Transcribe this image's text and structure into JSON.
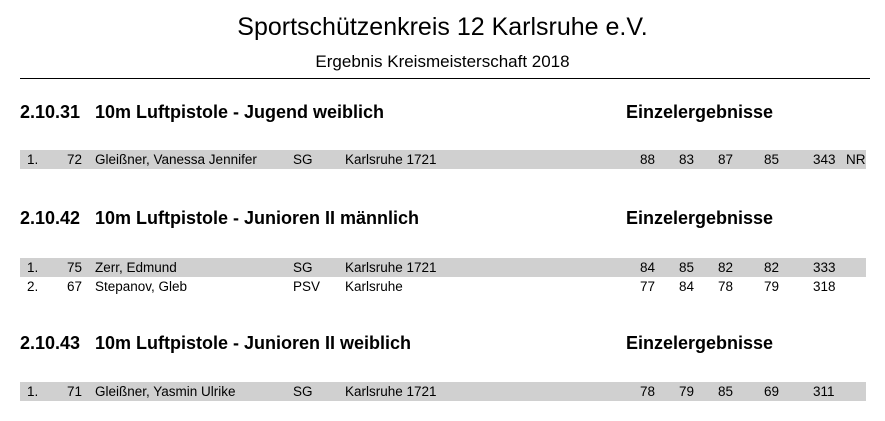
{
  "header": {
    "title": "Sportschützenkreis 12 Karlsruhe e.V.",
    "subtitle": "Ergebnis Kreismeisterschaft 2018"
  },
  "sections": [
    {
      "number": "2.10.31",
      "name": "10m Luftpistole - Jugend weiblich",
      "type_label": "Einzelergebnisse",
      "rows": [
        {
          "rank": "1.",
          "start_no": "72",
          "name": "Gleißner,  Vanessa Jennifer",
          "club": "SG",
          "association": "Karlsruhe 1721",
          "s1": "88",
          "s2": "83",
          "s3": "87",
          "s4": "85",
          "total": "343",
          "note": "NR"
        }
      ]
    },
    {
      "number": "2.10.42",
      "name": "10m Luftpistole - Junioren II männlich",
      "type_label": "Einzelergebnisse",
      "rows": [
        {
          "rank": "1.",
          "start_no": "75",
          "name": "Zerr,  Edmund",
          "club": "SG",
          "association": "Karlsruhe 1721",
          "s1": "84",
          "s2": "85",
          "s3": "82",
          "s4": "82",
          "total": "333",
          "note": ""
        },
        {
          "rank": "2.",
          "start_no": "67",
          "name": "Stepanov,  Gleb",
          "club": "PSV",
          "association": "Karlsruhe",
          "s1": "77",
          "s2": "84",
          "s3": "78",
          "s4": "79",
          "total": "318",
          "note": ""
        }
      ]
    },
    {
      "number": "2.10.43",
      "name": "10m Luftpistole - Junioren II weiblich",
      "type_label": "Einzelergebnisse",
      "rows": [
        {
          "rank": "1.",
          "start_no": "71",
          "name": "Gleißner,  Yasmin Ulrike",
          "club": "SG",
          "association": "Karlsruhe 1721",
          "s1": "78",
          "s2": "79",
          "s3": "85",
          "s4": "69",
          "total": "311",
          "note": ""
        }
      ]
    }
  ]
}
